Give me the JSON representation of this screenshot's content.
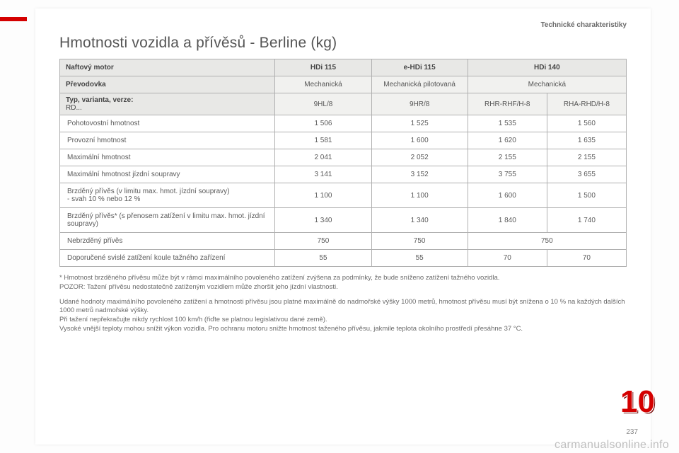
{
  "section_header": "Technické charakteristiky",
  "title": "Hmotnosti vozidla a přívěsů - Berline (kg)",
  "table": {
    "header_row": {
      "engine_label": "Naftový motor",
      "cols": [
        "HDi 115",
        "e-HDi 115",
        "HDi 140"
      ]
    },
    "gearbox_row": {
      "label": "Převodovka",
      "cols": [
        "Mechanická",
        "Mechanická pilotovaná",
        "Mechanická"
      ]
    },
    "type_row": {
      "label_line1": "Typ, varianta, verze:",
      "label_line2": "RD...",
      "cols": [
        "9HL/8",
        "9HR/8",
        "RHR-RHF/H-8",
        "RHA-RHD/H-8"
      ]
    },
    "rows": [
      {
        "label": "Pohotovostní hmotnost",
        "vals": [
          "1 506",
          "1 525",
          "1 535",
          "1 560"
        ]
      },
      {
        "label": "Provozní hmotnost",
        "vals": [
          "1 581",
          "1 600",
          "1 620",
          "1 635"
        ]
      },
      {
        "label": "Maximální hmotnost",
        "vals": [
          "2 041",
          "2 052",
          "2 155",
          "2 155"
        ]
      },
      {
        "label": "Maximální hmotnost jízdní soupravy",
        "vals": [
          "3 141",
          "3 152",
          "3 755",
          "3 655"
        ]
      },
      {
        "label": "Brzděný přívěs (v limitu max. hmot. jízdní soupravy)\n-    svah 10 % nebo 12 %",
        "vals": [
          "1 100",
          "1 100",
          "1 600",
          "1 500"
        ]
      },
      {
        "label": "Brzděný přívěs* (s přenosem zatížení v limitu max. hmot. jízdní soupravy)",
        "vals": [
          "1 340",
          "1 340",
          "1 840",
          "1 740"
        ]
      },
      {
        "label": "Nebrzděný přívěs",
        "vals": [
          "750",
          "750",
          "750"
        ],
        "last_colspan": 2
      },
      {
        "label": "Doporučené svislé zatížení koule tažného zařízení",
        "vals": [
          "55",
          "55",
          "70",
          "70"
        ]
      }
    ]
  },
  "footnotes": {
    "star": "* Hmotnost brzděného přívěsu může být v rámci maximálního povoleného zatížení zvýšena za podmínky, že bude sníženo zatížení tažného vozidla.\n  POZOR: Tažení přívěsu nedostatečně zatíženým vozidlem může zhoršit jeho jízdní vlastnosti.",
    "para": "Udané hodnoty maximálního povoleného zatížení a hmotnosti přívěsu jsou platné maximálně do nadmořské výšky 1000 metrů, hmotnost přívěsu musí být snížena o 10 % na každých dalších 1000 metrů nadmořské výšky.\nPři tažení nepřekračujte nikdy rychlost 100 km/h (řiďte se platnou legislativou dané země).\nVysoké vnější teploty mohou snížit výkon vozidla. Pro ochranu motoru snižte hmotnost taženého přívěsu, jakmile teplota okolního prostředí přesáhne 37 °C."
  },
  "chapter_number": "10",
  "page_number": "237",
  "watermark": "carmanualsonline.info"
}
